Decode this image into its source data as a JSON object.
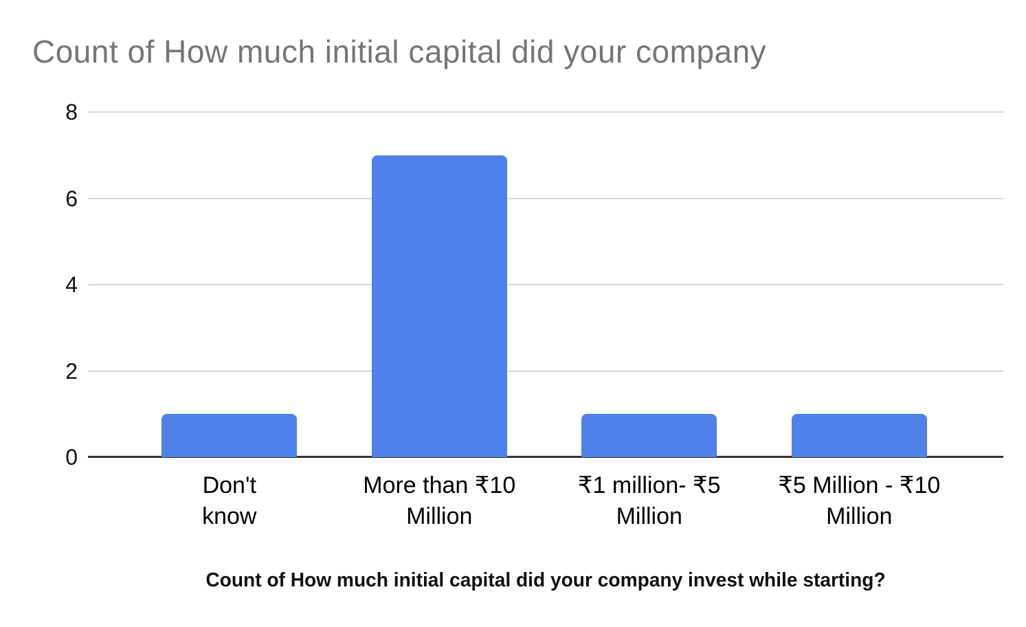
{
  "chart_data": {
    "type": "bar",
    "title": "Count of How much initial capital did your company",
    "categories": [
      "Don't know",
      "More than ₹10 Million",
      "₹1 million- ₹5 Million",
      "₹5 Million - ₹10 Million"
    ],
    "category_label_lines": [
      [
        "Don't",
        "know"
      ],
      [
        "More than ₹10",
        "Million"
      ],
      [
        "₹1 million- ₹5",
        "Million"
      ],
      [
        "₹5 Million - ₹10",
        "Million"
      ]
    ],
    "values": [
      1,
      7,
      1,
      1
    ],
    "xlabel": "Count of How much initial capital did your company invest while starting?",
    "ylabel": "",
    "ylim": [
      0,
      8
    ],
    "yticks": [
      0,
      2,
      4,
      6,
      8
    ],
    "grid": true,
    "legend": "none",
    "colors": {
      "bar": "#4e81e9",
      "title": "#757575",
      "gridline": "#d9d9d9",
      "axis_line": "#333333",
      "tick_label": "#111111",
      "category_label": "#000000",
      "axis_title": "#111111",
      "background": "#ffffff"
    }
  }
}
